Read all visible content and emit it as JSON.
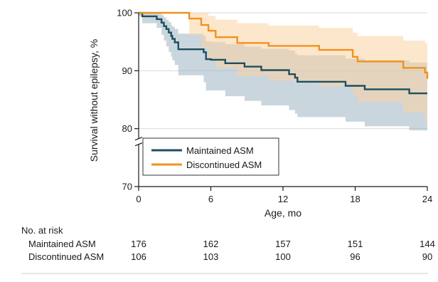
{
  "chart_data": {
    "type": "line",
    "subtype": "kaplan-meier",
    "xlabel": "Age, mo",
    "ylabel": "Survival without epilepsy, %",
    "xlim": [
      0,
      24
    ],
    "ylim": [
      70,
      100
    ],
    "x_ticks": [
      0,
      6,
      12,
      18,
      24
    ],
    "y_ticks": [
      70,
      80,
      90,
      100
    ],
    "grid": "horizontal",
    "axis_break": "y-axis break between 70 and 80",
    "legend": {
      "position": "bottom-left",
      "entries": [
        "Maintained ASM",
        "Discontinued ASM"
      ]
    },
    "series": [
      {
        "name": "Maintained ASM",
        "color": "#1f4e5f",
        "band_color": "#9fb4c2",
        "steps": [
          [
            0,
            100
          ],
          [
            0.3,
            99.4
          ],
          [
            1.5,
            98.9
          ],
          [
            1.9,
            98.3
          ],
          [
            2.1,
            97.7
          ],
          [
            2.3,
            97.2
          ],
          [
            2.5,
            96.6
          ],
          [
            2.7,
            96.0
          ],
          [
            2.8,
            95.5
          ],
          [
            3.0,
            94.9
          ],
          [
            3.3,
            93.7
          ],
          [
            5.4,
            93.2
          ],
          [
            5.6,
            92.0
          ],
          [
            6.0,
            91.9
          ],
          [
            7.2,
            91.3
          ],
          [
            8.8,
            90.7
          ],
          [
            10.2,
            90.1
          ],
          [
            12.5,
            89.4
          ],
          [
            13.0,
            88.8
          ],
          [
            13.2,
            88.1
          ],
          [
            17.2,
            87.4
          ],
          [
            18.8,
            86.8
          ],
          [
            22.5,
            86.1
          ],
          [
            24,
            86.1
          ]
        ],
        "ci_lower": [
          [
            0,
            99.4
          ],
          [
            0.3,
            98.2
          ],
          [
            1.5,
            97.4
          ],
          [
            1.9,
            96.2
          ],
          [
            2.1,
            95.2
          ],
          [
            2.3,
            94.2
          ],
          [
            2.5,
            93.2
          ],
          [
            2.7,
            92.4
          ],
          [
            2.8,
            91.8
          ],
          [
            3.0,
            91.0
          ],
          [
            3.3,
            89.2
          ],
          [
            5.4,
            88.0
          ],
          [
            5.6,
            86.6
          ],
          [
            6.0,
            86.6
          ],
          [
            7.2,
            85.6
          ],
          [
            8.8,
            84.8
          ],
          [
            10.2,
            84.0
          ],
          [
            12.5,
            83.2
          ],
          [
            13.0,
            82.6
          ],
          [
            13.2,
            82.0
          ],
          [
            17.2,
            81.2
          ],
          [
            18.8,
            80.4
          ],
          [
            22.5,
            79.7
          ],
          [
            24,
            79.7
          ]
        ],
        "ci_upper": [
          [
            0,
            100
          ],
          [
            0.3,
            100
          ],
          [
            1.5,
            100
          ],
          [
            1.9,
            99.6
          ],
          [
            2.1,
            99.2
          ],
          [
            2.3,
            98.8
          ],
          [
            2.5,
            98.4
          ],
          [
            2.7,
            97.9
          ],
          [
            2.8,
            97.6
          ],
          [
            3.0,
            97.2
          ],
          [
            3.3,
            96.4
          ],
          [
            5.4,
            96.0
          ],
          [
            5.6,
            95.1
          ],
          [
            6.0,
            95.0
          ],
          [
            7.2,
            94.6
          ],
          [
            8.8,
            94.2
          ],
          [
            10.2,
            93.8
          ],
          [
            12.5,
            93.5
          ],
          [
            13.0,
            93.0
          ],
          [
            13.2,
            92.7
          ],
          [
            17.2,
            92.1
          ],
          [
            18.8,
            91.8
          ],
          [
            22.5,
            91.4
          ],
          [
            24,
            91.4
          ]
        ]
      },
      {
        "name": "Discontinued ASM",
        "color": "#f0921e",
        "band_color": "#fbd3a3",
        "steps": [
          [
            0,
            100
          ],
          [
            4.2,
            99.0
          ],
          [
            5.2,
            97.9
          ],
          [
            5.8,
            96.9
          ],
          [
            6.4,
            95.8
          ],
          [
            8.2,
            94.8
          ],
          [
            10.8,
            94.3
          ],
          [
            15.0,
            93.6
          ],
          [
            17.8,
            92.4
          ],
          [
            18.2,
            91.6
          ],
          [
            22.0,
            90.5
          ],
          [
            23.8,
            89.7
          ],
          [
            24,
            88.6
          ]
        ],
        "ci_lower": [
          [
            0,
            100
          ],
          [
            4.2,
            96.2
          ],
          [
            5.2,
            93.9
          ],
          [
            5.8,
            92.0
          ],
          [
            6.4,
            90.5
          ],
          [
            8.2,
            89.1
          ],
          [
            10.8,
            88.3
          ],
          [
            15.0,
            87.3
          ],
          [
            17.8,
            85.8
          ],
          [
            18.2,
            84.6
          ],
          [
            22.0,
            82.8
          ],
          [
            23.8,
            81.2
          ],
          [
            24,
            80.8
          ]
        ],
        "ci_upper": [
          [
            0,
            100
          ],
          [
            4.2,
            100
          ],
          [
            5.2,
            100
          ],
          [
            5.8,
            99.5
          ],
          [
            6.4,
            98.8
          ],
          [
            8.2,
            98.2
          ],
          [
            10.8,
            97.8
          ],
          [
            15.0,
            97.4
          ],
          [
            17.8,
            96.6
          ],
          [
            18.2,
            96.0
          ],
          [
            22.0,
            95.2
          ],
          [
            23.8,
            94.8
          ],
          [
            24,
            94.4
          ]
        ]
      }
    ],
    "risk_table": {
      "header": "No. at risk",
      "times": [
        0,
        6,
        12,
        18,
        24
      ],
      "rows": [
        {
          "label": "Maintained ASM",
          "values": [
            "176",
            "162",
            "157",
            "151",
            "144"
          ]
        },
        {
          "label": "Discontinued ASM",
          "values": [
            "106",
            "103",
            "100",
            "96",
            "90"
          ]
        }
      ]
    }
  }
}
